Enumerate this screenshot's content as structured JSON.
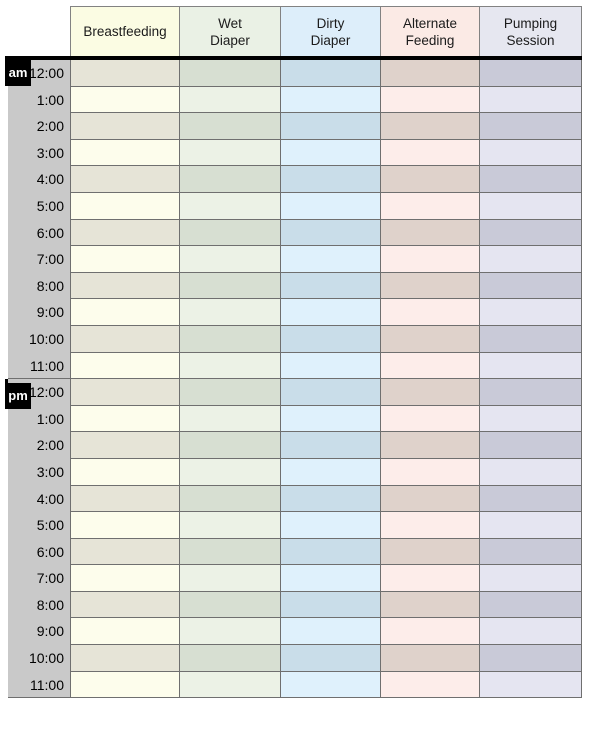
{
  "sheet": {
    "title": "baby-care-hourly-log",
    "columns": [
      {
        "id": "breastfeeding",
        "label": "Breastfeeding",
        "label_lines": [
          "Breastfeeding"
        ],
        "header_bg": "#fbfce3",
        "row_light_bg": "#fdfdec",
        "row_dark_bg": "#e6e4d7"
      },
      {
        "id": "wet-diaper",
        "label": "Wet Diaper",
        "label_lines": [
          "Wet",
          "Diaper"
        ],
        "header_bg": "#eaf1e5",
        "row_light_bg": "#ecf2e6",
        "row_dark_bg": "#d7dfd2"
      },
      {
        "id": "dirty-diaper",
        "label": "Dirty Diaper",
        "label_lines": [
          "Dirty",
          "Diaper"
        ],
        "header_bg": "#ddeefa",
        "row_light_bg": "#dff1fc",
        "row_dark_bg": "#c9dde9"
      },
      {
        "id": "alternate-feeding",
        "label": "Alternate Feeding",
        "label_lines": [
          "Alternate",
          "Feeding"
        ],
        "header_bg": "#fbeae5",
        "row_light_bg": "#fdedea",
        "row_dark_bg": "#dfd2cb"
      },
      {
        "id": "pumping-session",
        "label": "Pumping Session",
        "label_lines": [
          "Pumping",
          "Session"
        ],
        "header_bg": "#e6e7f0",
        "row_light_bg": "#e5e5f1",
        "row_dark_bg": "#c9cad8"
      }
    ],
    "sections": [
      {
        "meridiem": "am",
        "hours": [
          "12:00",
          "1:00",
          "2:00",
          "3:00",
          "4:00",
          "5:00",
          "6:00",
          "7:00",
          "8:00",
          "9:00",
          "10:00",
          "11:00"
        ]
      },
      {
        "meridiem": "pm",
        "hours": [
          "12:00",
          "1:00",
          "2:00",
          "3:00",
          "4:00",
          "5:00",
          "6:00",
          "7:00",
          "8:00",
          "9:00",
          "10:00",
          "11:00"
        ]
      }
    ],
    "colors": {
      "page_bg": "#ffffff",
      "time_column_bg": "#c9c9c9",
      "meridiem_badge_bg": "#000000",
      "meridiem_badge_text": "#ffffff",
      "grid_line": "#6f6f6f",
      "header_border": "#828282",
      "section_divider": "#000000"
    }
  }
}
